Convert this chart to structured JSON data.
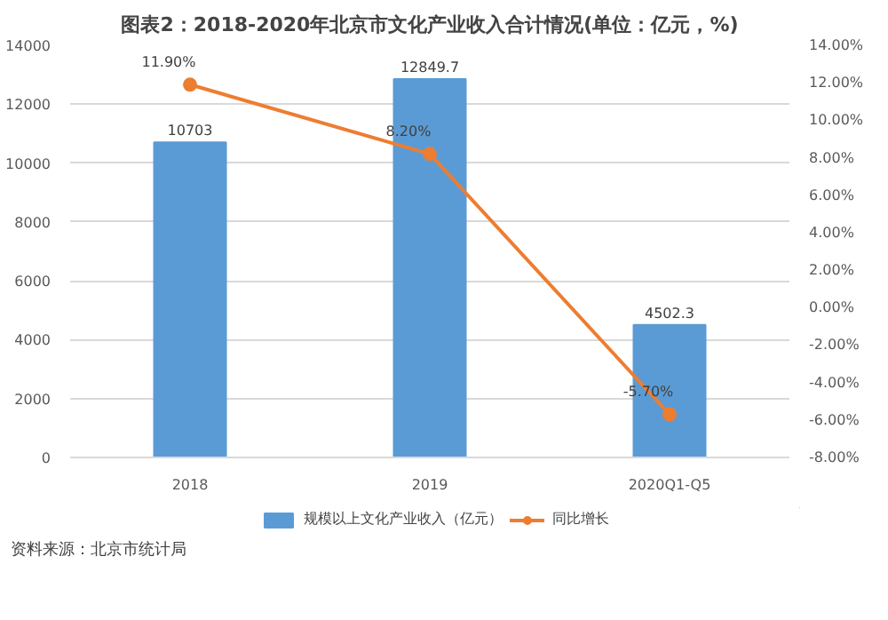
{
  "chart_data": {
    "type": "bar",
    "title": "图表2：2018-2020年北京市文化产业收入合计情况(单位：亿元，%)",
    "categories": [
      "2018",
      "2019",
      "2020Q1-Q5"
    ],
    "series": [
      {
        "name": "规模以上文化产业收入（亿元）",
        "color": "#5b9bd5",
        "values": [
          10703,
          12849.7,
          4502.3
        ],
        "value_labels": [
          "10703",
          "12849.7",
          "4502.3"
        ]
      },
      {
        "name": "同比增长",
        "type": "line",
        "axis": "y2",
        "color": "#ed7d31",
        "marker": "circle",
        "values": [
          11.9,
          8.2,
          -5.7
        ],
        "value_labels": [
          "11.90%",
          "8.20%",
          "-5.70%"
        ]
      }
    ],
    "ylim": [
      0,
      14000
    ],
    "yticks": [
      0,
      2000,
      4000,
      6000,
      8000,
      10000,
      12000,
      14000
    ],
    "y2lim": [
      -8,
      14
    ],
    "y2ticks": [
      {
        "value": -8,
        "label": "-8.00%"
      },
      {
        "value": -6,
        "label": "-6.00%"
      },
      {
        "value": -4,
        "label": "-4.00%"
      },
      {
        "value": -2,
        "label": "-2.00%"
      },
      {
        "value": 0,
        "label": "0.00%"
      },
      {
        "value": 2,
        "label": "2.00%"
      },
      {
        "value": 4,
        "label": "4.00%"
      },
      {
        "value": 6,
        "label": "6.00%"
      },
      {
        "value": 8,
        "label": "8.00%"
      },
      {
        "value": 10,
        "label": "10.00%"
      },
      {
        "value": 12,
        "label": "12.00%"
      },
      {
        "value": 14,
        "label": "14.00%"
      }
    ],
    "grid": "y",
    "legend": "bottom",
    "annotations": [
      "资料来源：北京市统计局"
    ]
  }
}
